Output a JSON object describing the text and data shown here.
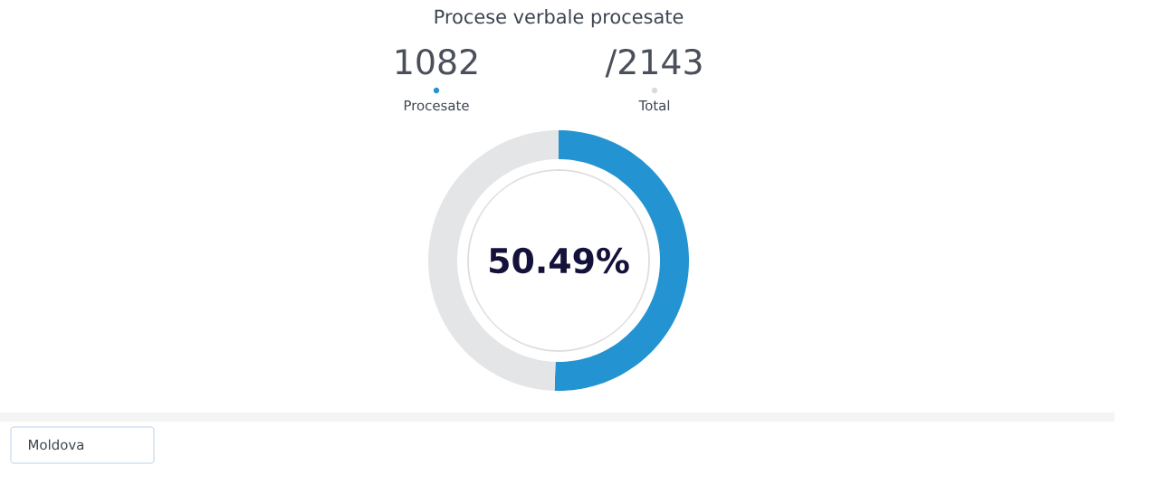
{
  "chart_data": {
    "type": "donut",
    "title": "Procese verbale procesate",
    "categories": [
      "Procesate",
      "Total"
    ],
    "values": [
      50.49,
      49.51
    ],
    "colors": [
      "#2394d1",
      "#e4e5e7"
    ],
    "value_labels": [
      "50.49%",
      null
    ],
    "legend": "top",
    "annotations": [
      "1082",
      "/2143",
      "Moldova"
    ]
  }
}
